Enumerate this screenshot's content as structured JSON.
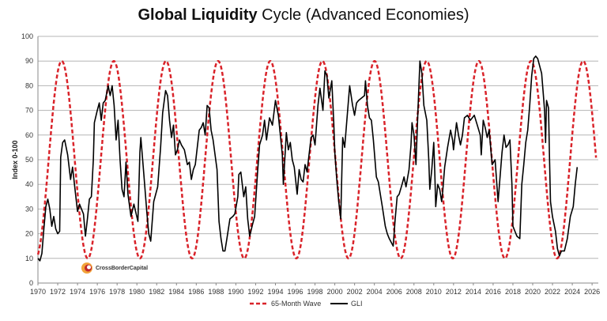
{
  "chart_data": {
    "type": "line",
    "title_bold": "Global Liquidity",
    "title_rest": " Cycle (Advanced Economies)",
    "ylabel": "Index 0-100",
    "xlabel": "",
    "ylim": [
      0,
      100
    ],
    "xlim": [
      1970,
      2026.4
    ],
    "yticks": [
      0,
      10,
      20,
      30,
      40,
      50,
      60,
      70,
      80,
      90,
      100
    ],
    "xticks": [
      1970,
      1972,
      1974,
      1976,
      1978,
      1980,
      1982,
      1984,
      1986,
      1988,
      1990,
      1992,
      1994,
      1996,
      1998,
      2000,
      2002,
      2004,
      2006,
      2008,
      2010,
      2012,
      2014,
      2016,
      2018,
      2020,
      2022,
      2024,
      2026
    ],
    "grid": "horizontal",
    "legend_position": "bottom",
    "logo_text": "CrossBorderCapital",
    "series": [
      {
        "name": "65-Month Wave",
        "style": "dashed",
        "color": "#d9232a",
        "wave": {
          "min": 10,
          "max": 90,
          "first_peak": 1972.4,
          "period_years": 5.27
        }
      },
      {
        "name": "GLI",
        "style": "solid",
        "color": "#000000",
        "points": [
          [
            1970.0,
            10
          ],
          [
            1970.2,
            9
          ],
          [
            1970.4,
            12
          ],
          [
            1970.6,
            22
          ],
          [
            1970.8,
            31
          ],
          [
            1971.0,
            34
          ],
          [
            1971.2,
            30
          ],
          [
            1971.4,
            23
          ],
          [
            1971.6,
            27
          ],
          [
            1971.8,
            22
          ],
          [
            1972.0,
            20
          ],
          [
            1972.2,
            21
          ],
          [
            1972.3,
            51
          ],
          [
            1972.5,
            57
          ],
          [
            1972.7,
            58
          ],
          [
            1973.0,
            52
          ],
          [
            1973.3,
            42
          ],
          [
            1973.5,
            47
          ],
          [
            1973.8,
            36
          ],
          [
            1974.0,
            29
          ],
          [
            1974.2,
            32
          ],
          [
            1974.4,
            30
          ],
          [
            1974.6,
            28
          ],
          [
            1974.8,
            19
          ],
          [
            1975.0,
            26
          ],
          [
            1975.2,
            34
          ],
          [
            1975.4,
            35
          ],
          [
            1975.6,
            50
          ],
          [
            1975.7,
            65
          ],
          [
            1976.0,
            70
          ],
          [
            1976.2,
            73
          ],
          [
            1976.4,
            66
          ],
          [
            1976.6,
            73
          ],
          [
            1976.8,
            74
          ],
          [
            1977.1,
            80
          ],
          [
            1977.3,
            76
          ],
          [
            1977.5,
            80
          ],
          [
            1977.7,
            72
          ],
          [
            1977.9,
            58
          ],
          [
            1978.1,
            66
          ],
          [
            1978.3,
            50
          ],
          [
            1978.5,
            38
          ],
          [
            1978.7,
            35
          ],
          [
            1978.9,
            49
          ],
          [
            1979.1,
            36
          ],
          [
            1979.4,
            27
          ],
          [
            1979.7,
            32
          ],
          [
            1980.1,
            25
          ],
          [
            1980.3,
            53
          ],
          [
            1980.4,
            59
          ],
          [
            1980.7,
            44
          ],
          [
            1981.0,
            29
          ],
          [
            1981.2,
            20
          ],
          [
            1981.4,
            17
          ],
          [
            1981.7,
            33
          ],
          [
            1982.1,
            39
          ],
          [
            1982.4,
            55
          ],
          [
            1982.6,
            69
          ],
          [
            1982.9,
            78
          ],
          [
            1983.1,
            76
          ],
          [
            1983.3,
            66
          ],
          [
            1983.5,
            59
          ],
          [
            1983.7,
            64
          ],
          [
            1983.9,
            52
          ],
          [
            1984.1,
            54
          ],
          [
            1984.3,
            58
          ],
          [
            1984.5,
            56
          ],
          [
            1984.8,
            54
          ],
          [
            1985.1,
            48
          ],
          [
            1985.3,
            49
          ],
          [
            1985.5,
            42
          ],
          [
            1985.7,
            46
          ],
          [
            1985.9,
            48
          ],
          [
            1986.1,
            55
          ],
          [
            1986.3,
            62
          ],
          [
            1986.5,
            63
          ],
          [
            1986.7,
            65
          ],
          [
            1986.9,
            60
          ],
          [
            1987.1,
            72
          ],
          [
            1987.3,
            71
          ],
          [
            1987.5,
            62
          ],
          [
            1987.7,
            58
          ],
          [
            1987.9,
            52
          ],
          [
            1988.1,
            46
          ],
          [
            1988.3,
            25
          ],
          [
            1988.5,
            18
          ],
          [
            1988.7,
            13
          ],
          [
            1988.9,
            13
          ],
          [
            1989.1,
            18
          ],
          [
            1989.4,
            26
          ],
          [
            1989.7,
            27
          ],
          [
            1989.9,
            28
          ],
          [
            1990.2,
            35
          ],
          [
            1990.3,
            44
          ],
          [
            1990.5,
            45
          ],
          [
            1990.8,
            35
          ],
          [
            1991.0,
            39
          ],
          [
            1991.2,
            26
          ],
          [
            1991.4,
            19
          ],
          [
            1991.7,
            24
          ],
          [
            1991.9,
            27
          ],
          [
            1992.2,
            45
          ],
          [
            1992.4,
            56
          ],
          [
            1992.7,
            60
          ],
          [
            1992.9,
            66
          ],
          [
            1993.1,
            58
          ],
          [
            1993.4,
            67
          ],
          [
            1993.7,
            64
          ],
          [
            1994.0,
            74
          ],
          [
            1994.3,
            68
          ],
          [
            1994.5,
            60
          ],
          [
            1994.7,
            52
          ],
          [
            1994.8,
            40
          ],
          [
            1995.1,
            61
          ],
          [
            1995.3,
            54
          ],
          [
            1995.5,
            57
          ],
          [
            1995.7,
            50
          ],
          [
            1995.9,
            47
          ],
          [
            1996.2,
            36
          ],
          [
            1996.4,
            46
          ],
          [
            1996.6,
            42
          ],
          [
            1996.8,
            41
          ],
          [
            1997.0,
            48
          ],
          [
            1997.2,
            45
          ],
          [
            1997.4,
            52
          ],
          [
            1997.6,
            59
          ],
          [
            1997.8,
            60
          ],
          [
            1998.0,
            56
          ],
          [
            1998.3,
            72
          ],
          [
            1998.5,
            79
          ],
          [
            1998.8,
            70
          ],
          [
            1999.0,
            86
          ],
          [
            1999.2,
            84
          ],
          [
            1999.4,
            75
          ],
          [
            1999.7,
            82
          ],
          [
            1999.9,
            65
          ],
          [
            2000.0,
            53
          ],
          [
            2000.2,
            42
          ],
          [
            2000.4,
            33
          ],
          [
            2000.6,
            26
          ],
          [
            2000.8,
            59
          ],
          [
            2001.0,
            55
          ],
          [
            2001.2,
            65
          ],
          [
            2001.5,
            80
          ],
          [
            2001.8,
            72
          ],
          [
            2002.0,
            68
          ],
          [
            2002.2,
            73
          ],
          [
            2002.4,
            74
          ],
          [
            2002.7,
            75
          ],
          [
            2003.0,
            76
          ],
          [
            2003.1,
            82
          ],
          [
            2003.3,
            72
          ],
          [
            2003.5,
            67
          ],
          [
            2003.7,
            66
          ],
          [
            2003.9,
            58
          ],
          [
            2004.2,
            43
          ],
          [
            2004.4,
            41
          ],
          [
            2004.6,
            36
          ],
          [
            2004.8,
            31
          ],
          [
            2005.1,
            23
          ],
          [
            2005.3,
            20
          ],
          [
            2005.5,
            18
          ],
          [
            2005.9,
            15
          ],
          [
            2006.1,
            26
          ],
          [
            2006.3,
            35
          ],
          [
            2006.5,
            36
          ],
          [
            2006.8,
            40
          ],
          [
            2007.0,
            43
          ],
          [
            2007.2,
            39
          ],
          [
            2007.5,
            46
          ],
          [
            2007.7,
            56
          ],
          [
            2007.8,
            65
          ],
          [
            2008.0,
            60
          ],
          [
            2008.2,
            48
          ],
          [
            2008.4,
            70
          ],
          [
            2008.6,
            90
          ],
          [
            2008.8,
            85
          ],
          [
            2009.0,
            72
          ],
          [
            2009.3,
            66
          ],
          [
            2009.5,
            50
          ],
          [
            2009.6,
            38
          ],
          [
            2009.8,
            46
          ],
          [
            2010.0,
            57
          ],
          [
            2010.1,
            45
          ],
          [
            2010.2,
            31
          ],
          [
            2010.4,
            40
          ],
          [
            2010.6,
            38
          ],
          [
            2010.8,
            33
          ],
          [
            2010.9,
            37
          ],
          [
            2011.1,
            47
          ],
          [
            2011.4,
            55
          ],
          [
            2011.7,
            62
          ],
          [
            2011.9,
            58
          ],
          [
            2012.0,
            54
          ],
          [
            2012.3,
            65
          ],
          [
            2012.5,
            60
          ],
          [
            2012.7,
            56
          ],
          [
            2012.9,
            60
          ],
          [
            2013.1,
            67
          ],
          [
            2013.4,
            68
          ],
          [
            2013.7,
            66
          ],
          [
            2013.9,
            67
          ],
          [
            2014.1,
            68
          ],
          [
            2014.4,
            64
          ],
          [
            2014.7,
            60
          ],
          [
            2014.8,
            52
          ],
          [
            2015.0,
            66
          ],
          [
            2015.2,
            63
          ],
          [
            2015.4,
            59
          ],
          [
            2015.6,
            62
          ],
          [
            2015.9,
            48
          ],
          [
            2016.2,
            50
          ],
          [
            2016.5,
            33
          ],
          [
            2016.9,
            53
          ],
          [
            2017.1,
            60
          ],
          [
            2017.3,
            55
          ],
          [
            2017.5,
            56
          ],
          [
            2017.7,
            58
          ],
          [
            2017.9,
            40
          ],
          [
            2018.0,
            23
          ],
          [
            2018.2,
            21
          ],
          [
            2018.4,
            19
          ],
          [
            2018.7,
            18
          ],
          [
            2018.9,
            40
          ],
          [
            2019.1,
            48
          ],
          [
            2019.3,
            57
          ],
          [
            2019.5,
            62
          ],
          [
            2019.7,
            72
          ],
          [
            2019.9,
            84
          ],
          [
            2020.1,
            91
          ],
          [
            2020.3,
            92
          ],
          [
            2020.5,
            91
          ],
          [
            2020.7,
            88
          ],
          [
            2020.9,
            85
          ],
          [
            2021.1,
            75
          ],
          [
            2021.2,
            70
          ],
          [
            2021.3,
            57
          ],
          [
            2021.4,
            74
          ],
          [
            2021.6,
            71
          ],
          [
            2021.7,
            50
          ],
          [
            2021.8,
            33
          ],
          [
            2022.0,
            27
          ],
          [
            2022.3,
            21
          ],
          [
            2022.5,
            14
          ],
          [
            2022.7,
            11
          ],
          [
            2022.9,
            13
          ],
          [
            2023.2,
            13
          ],
          [
            2023.5,
            18
          ],
          [
            2023.8,
            27
          ],
          [
            2024.1,
            31
          ],
          [
            2024.3,
            40
          ],
          [
            2024.5,
            47
          ]
        ]
      }
    ]
  }
}
